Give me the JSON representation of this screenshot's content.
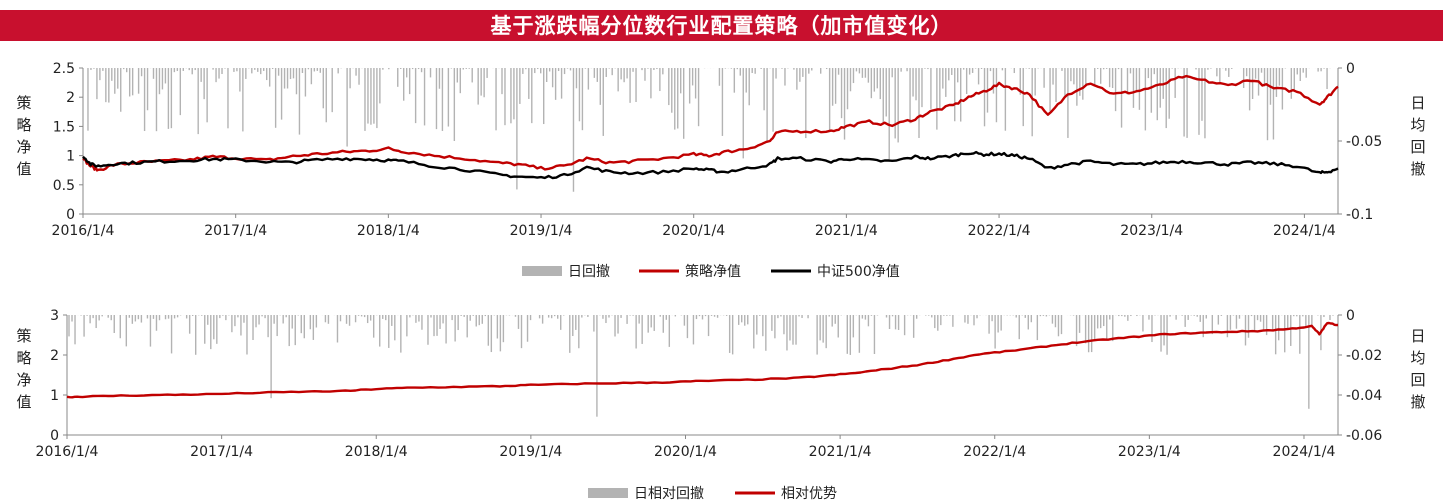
{
  "title": "基于涨跌幅分位数行业配置策略（加市值变化）",
  "colors": {
    "banner": "#c8102e",
    "strategy": "#c00000",
    "index": "#000000",
    "drawdown": "#b3b3b3"
  },
  "chart_data": [
    {
      "type": "line",
      "ylabel_left": "策略净值",
      "ylabel_right": "日均回撤",
      "ylim_left": [
        0,
        2.5
      ],
      "ylim_right": [
        -0.1,
        0
      ],
      "yticks_left": [
        "0",
        "0.5",
        "1",
        "1.5",
        "2",
        "2.5"
      ],
      "yticks_right": [
        "-0.1",
        "-0.05",
        "0"
      ],
      "x_ticks": [
        "2016/1/4",
        "2017/1/4",
        "2018/1/4",
        "2019/1/4",
        "2020/1/4",
        "2021/1/4",
        "2022/1/4",
        "2023/1/4",
        "2024/1/4"
      ],
      "x_range": [
        2016.0,
        2024.22
      ],
      "legend": [
        "日回撤",
        "策略净值",
        "中证500净值"
      ],
      "series": [
        {
          "name": "策略净值",
          "axis": "left",
          "x": [
            2016.0,
            2016.05,
            2016.1,
            2016.2,
            2016.35,
            2016.5,
            2016.7,
            2016.85,
            2017.0,
            2017.2,
            2017.35,
            2017.5,
            2017.7,
            2017.85,
            2018.0,
            2018.1,
            2018.3,
            2018.5,
            2018.7,
            2018.85,
            2019.0,
            2019.15,
            2019.3,
            2019.45,
            2019.6,
            2019.8,
            2020.0,
            2020.1,
            2020.2,
            2020.35,
            2020.5,
            2020.55,
            2020.7,
            2020.9,
            2021.0,
            2021.15,
            2021.3,
            2021.45,
            2021.55,
            2021.7,
            2021.8,
            2021.9,
            2022.0,
            2022.1,
            2022.2,
            2022.32,
            2022.45,
            2022.6,
            2022.75,
            2022.9,
            2023.05,
            2023.2,
            2023.35,
            2023.5,
            2023.65,
            2023.8,
            2023.95,
            2024.1,
            2024.15,
            2024.22
          ],
          "y": [
            0.95,
            0.82,
            0.75,
            0.84,
            0.88,
            0.9,
            0.93,
            0.98,
            0.96,
            0.92,
            0.98,
            1.02,
            1.06,
            1.08,
            1.12,
            1.07,
            1.0,
            0.95,
            0.88,
            0.85,
            0.78,
            0.82,
            0.95,
            0.88,
            0.9,
            0.95,
            1.02,
            1.0,
            1.06,
            1.12,
            1.25,
            1.4,
            1.42,
            1.42,
            1.5,
            1.58,
            1.52,
            1.63,
            1.75,
            1.86,
            2.0,
            2.1,
            2.22,
            2.15,
            2.05,
            1.68,
            2.05,
            2.25,
            2.05,
            2.1,
            2.2,
            2.35,
            2.28,
            2.2,
            2.3,
            2.15,
            2.1,
            1.88,
            2.0,
            2.18
          ]
        },
        {
          "name": "中证500净值",
          "axis": "left",
          "x": [
            2016.0,
            2016.05,
            2016.1,
            2016.2,
            2016.35,
            2016.5,
            2016.7,
            2016.85,
            2017.0,
            2017.2,
            2017.35,
            2017.5,
            2017.7,
            2017.85,
            2018.0,
            2018.1,
            2018.3,
            2018.5,
            2018.7,
            2018.85,
            2019.0,
            2019.15,
            2019.3,
            2019.45,
            2019.6,
            2019.8,
            2020.0,
            2020.1,
            2020.2,
            2020.35,
            2020.5,
            2020.55,
            2020.7,
            2020.9,
            2021.0,
            2021.15,
            2021.3,
            2021.45,
            2021.55,
            2021.7,
            2021.8,
            2021.9,
            2022.0,
            2022.1,
            2022.2,
            2022.32,
            2022.45,
            2022.6,
            2022.75,
            2022.9,
            2023.05,
            2023.2,
            2023.35,
            2023.5,
            2023.65,
            2023.8,
            2023.95,
            2024.1,
            2024.15,
            2024.22
          ],
          "y": [
            1.0,
            0.85,
            0.82,
            0.86,
            0.88,
            0.9,
            0.92,
            0.94,
            0.93,
            0.9,
            0.88,
            0.92,
            0.95,
            0.94,
            0.92,
            0.9,
            0.82,
            0.76,
            0.68,
            0.64,
            0.62,
            0.66,
            0.8,
            0.72,
            0.7,
            0.72,
            0.78,
            0.75,
            0.72,
            0.78,
            0.85,
            0.95,
            0.95,
            0.9,
            0.95,
            0.92,
            0.9,
            0.98,
            0.95,
            1.0,
            1.05,
            1.02,
            1.03,
            1.0,
            0.95,
            0.78,
            0.85,
            0.9,
            0.85,
            0.85,
            0.88,
            0.9,
            0.88,
            0.85,
            0.88,
            0.86,
            0.82,
            0.7,
            0.72,
            0.78
          ]
        },
        {
          "name": "日回撤",
          "axis": "right",
          "kind": "bar",
          "min": -0.1,
          "max": 0
        }
      ]
    },
    {
      "type": "line",
      "ylabel_left": "策略净值",
      "ylabel_right": "日均回撤",
      "ylim_left": [
        0,
        3
      ],
      "ylim_right": [
        -0.06,
        0
      ],
      "yticks_left": [
        "0",
        "1",
        "2",
        "3"
      ],
      "yticks_right": [
        "-0.06",
        "-0.04",
        "-0.02",
        "0"
      ],
      "x_ticks": [
        "2016/1/4",
        "2017/1/4",
        "2018/1/4",
        "2019/1/4",
        "2020/1/4",
        "2021/1/4",
        "2022/1/4",
        "2023/1/4",
        "2024/1/4"
      ],
      "x_range": [
        2016.0,
        2024.22
      ],
      "legend": [
        "日相对回撤",
        "相对优势"
      ],
      "series": [
        {
          "name": "相对优势",
          "axis": "left",
          "x": [
            2016.0,
            2016.1,
            2016.3,
            2016.6,
            2016.9,
            2017.2,
            2017.5,
            2017.8,
            2018.0,
            2018.2,
            2018.5,
            2018.8,
            2019.0,
            2019.3,
            2019.6,
            2019.9,
            2020.1,
            2020.4,
            2020.7,
            2020.9,
            2021.1,
            2021.3,
            2021.5,
            2021.7,
            2021.9,
            2022.1,
            2022.3,
            2022.5,
            2022.7,
            2022.9,
            2023.1,
            2023.3,
            2023.5,
            2023.7,
            2023.9,
            2024.05,
            2024.1,
            2024.15,
            2024.22
          ],
          "y": [
            0.95,
            0.96,
            0.98,
            1.0,
            1.02,
            1.05,
            1.08,
            1.1,
            1.15,
            1.18,
            1.2,
            1.22,
            1.25,
            1.28,
            1.3,
            1.32,
            1.35,
            1.38,
            1.42,
            1.48,
            1.55,
            1.65,
            1.75,
            1.88,
            2.02,
            2.1,
            2.2,
            2.3,
            2.38,
            2.45,
            2.52,
            2.55,
            2.58,
            2.6,
            2.65,
            2.72,
            2.52,
            2.8,
            2.75
          ]
        },
        {
          "name": "日相对回撤",
          "axis": "right",
          "kind": "bar",
          "min": -0.06,
          "max": 0
        }
      ]
    }
  ]
}
